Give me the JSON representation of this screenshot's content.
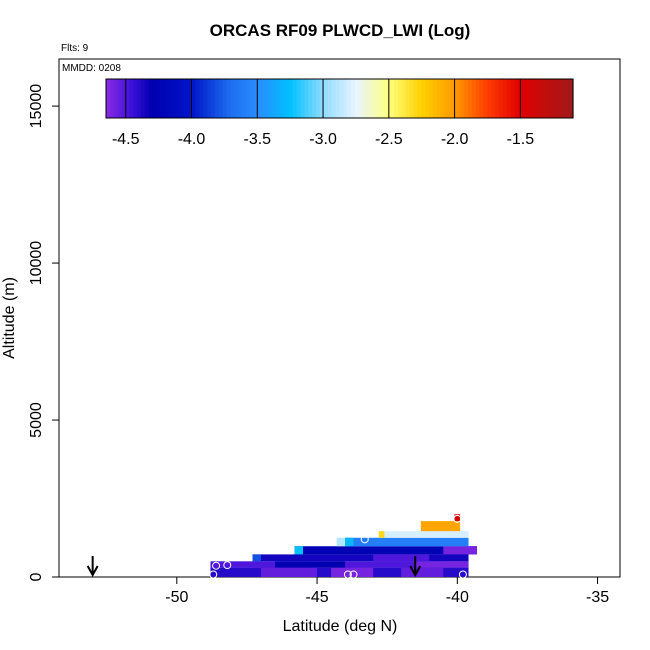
{
  "chart_data": {
    "type": "heatmap",
    "title": "ORCAS RF09 PLWCD_LWI (Log)",
    "flights_note": "Flts: 9",
    "date_note": "MMDD: 0208",
    "xlabel": "Latitude (deg N)",
    "ylabel": "Altitude (m)",
    "xlim": [
      -54.2,
      -34.2
    ],
    "ylim": [
      0,
      16500
    ],
    "x_ticks": [
      -50,
      -45,
      -40,
      -35
    ],
    "y_ticks": [
      0,
      5000,
      10000,
      15000
    ],
    "colorbar": {
      "range": [
        -4.65,
        -1.1
      ],
      "ticks": [
        -4.5,
        -4.0,
        -3.5,
        -3.0,
        -2.5,
        -2.0,
        -1.5
      ],
      "tick_labels": [
        "-4.5",
        "-4.0",
        "-3.5",
        "-3.0",
        "-2.5",
        "-2.0",
        "-1.5"
      ],
      "stops": [
        {
          "v": -4.65,
          "c": "#8a2be2"
        },
        {
          "v": -4.45,
          "c": "#3a10d8"
        },
        {
          "v": -4.3,
          "c": "#0000b0"
        },
        {
          "v": -4.0,
          "c": "#0014c8"
        },
        {
          "v": -3.7,
          "c": "#1e6ff0"
        },
        {
          "v": -3.5,
          "c": "#2a8cff"
        },
        {
          "v": -3.25,
          "c": "#00c0ff"
        },
        {
          "v": -3.0,
          "c": "#8fdcff"
        },
        {
          "v": -2.75,
          "c": "#e8f4ff"
        },
        {
          "v": -2.5,
          "c": "#ffff80"
        },
        {
          "v": -2.25,
          "c": "#ffd000"
        },
        {
          "v": -2.0,
          "c": "#ff9a00"
        },
        {
          "v": -1.75,
          "c": "#ff3c00"
        },
        {
          "v": -1.5,
          "c": "#e00000"
        },
        {
          "v": -1.1,
          "c": "#a01a1a"
        }
      ]
    },
    "cells": [
      {
        "x0": -48.8,
        "x1": -39.6,
        "y0": 0,
        "y1": 300,
        "v": -4.4
      },
      {
        "x0": -47.0,
        "x1": -45.0,
        "y0": 0,
        "y1": 300,
        "v": -4.55
      },
      {
        "x0": -44.5,
        "x1": -43.0,
        "y0": 0,
        "y1": 300,
        "v": -4.6
      },
      {
        "x0": -42.0,
        "x1": -40.5,
        "y0": 0,
        "y1": 300,
        "v": -4.55
      },
      {
        "x0": -48.8,
        "x1": -39.6,
        "y0": 300,
        "y1": 500,
        "v": -4.5
      },
      {
        "x0": -46.5,
        "x1": -44.0,
        "y0": 300,
        "y1": 500,
        "v": -4.3
      },
      {
        "x0": -41.5,
        "x1": -39.6,
        "y0": 300,
        "y1": 500,
        "v": -4.6
      },
      {
        "x0": -47.3,
        "x1": -39.6,
        "y0": 500,
        "y1": 720,
        "v": -4.35
      },
      {
        "x0": -47.3,
        "x1": -47.0,
        "y0": 500,
        "y1": 720,
        "v": -3.8
      },
      {
        "x0": -43.0,
        "x1": -41.0,
        "y0": 500,
        "y1": 720,
        "v": -4.5
      },
      {
        "x0": -45.8,
        "x1": -39.3,
        "y0": 720,
        "y1": 980,
        "v": -4.25
      },
      {
        "x0": -45.8,
        "x1": -45.5,
        "y0": 720,
        "y1": 980,
        "v": -3.25
      },
      {
        "x0": -40.5,
        "x1": -39.3,
        "y0": 720,
        "y1": 980,
        "v": -4.6
      },
      {
        "x0": -44.0,
        "x1": -39.6,
        "y0": 980,
        "y1": 1250,
        "v": -3.6
      },
      {
        "x0": -44.3,
        "x1": -44.0,
        "y0": 980,
        "y1": 1250,
        "v": -2.9
      },
      {
        "x0": -44.0,
        "x1": -43.7,
        "y0": 980,
        "y1": 1250,
        "v": -3.3
      },
      {
        "x0": -42.8,
        "x1": -39.6,
        "y0": 1250,
        "y1": 1460,
        "v": -2.8
      },
      {
        "x0": -42.8,
        "x1": -42.6,
        "y0": 1250,
        "y1": 1460,
        "v": -2.3
      },
      {
        "x0": -41.3,
        "x1": -39.9,
        "y0": 1460,
        "y1": 1780,
        "v": -2.05
      },
      {
        "x0": -40.1,
        "x1": -39.9,
        "y0": 1780,
        "y1": 2000,
        "v": -1.4
      }
    ],
    "markers": [
      {
        "x": -48.7,
        "y": 80
      },
      {
        "x": -48.6,
        "y": 360
      },
      {
        "x": -48.2,
        "y": 380
      },
      {
        "x": -43.9,
        "y": 80
      },
      {
        "x": -43.7,
        "y": 80
      },
      {
        "x": -43.3,
        "y": 1200
      },
      {
        "x": -39.8,
        "y": 80
      },
      {
        "x": -40.0,
        "y": 1850
      }
    ],
    "arrows": [
      {
        "x": -53.0
      },
      {
        "x": -41.5
      }
    ]
  }
}
